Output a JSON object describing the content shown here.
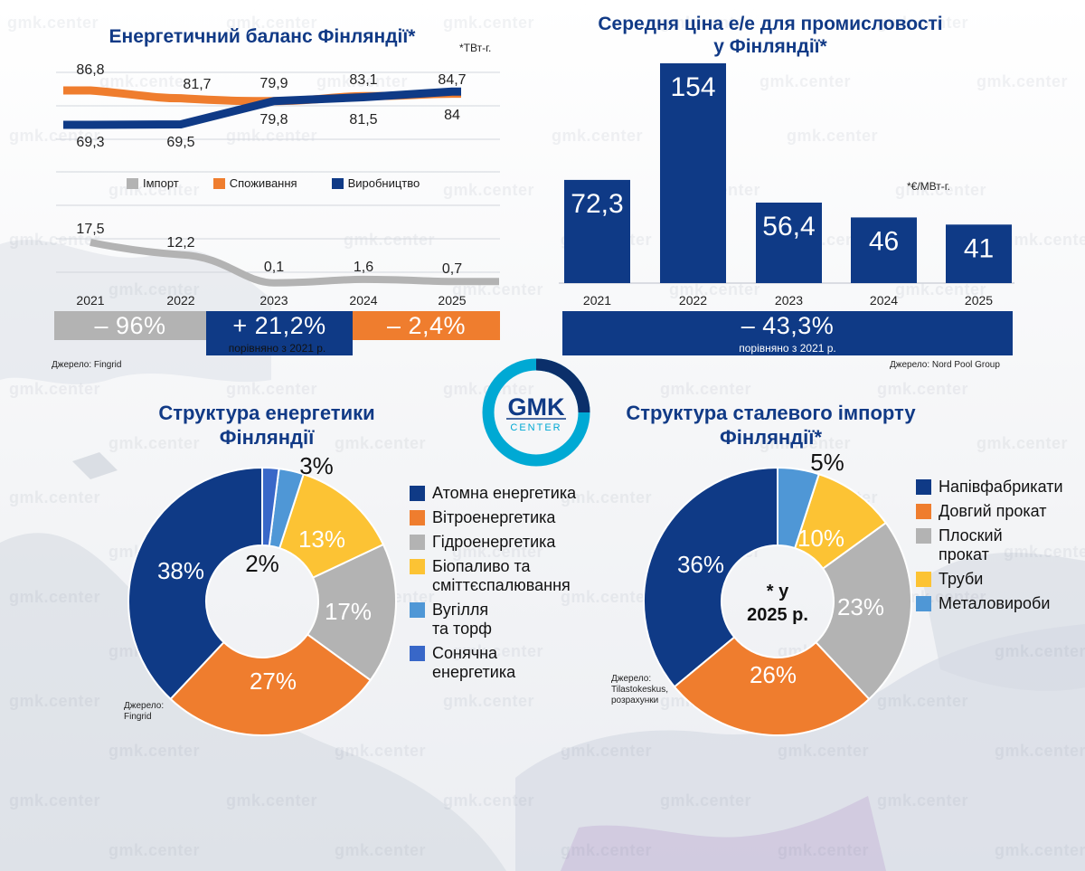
{
  "watermark": "gmk.center",
  "colors": {
    "navy": "#0f3a86",
    "orange": "#ef7d2e",
    "gray": "#b3b3b3",
    "yellow": "#fcc334",
    "lightblue": "#4f97d6",
    "blue": "#3867c8",
    "title": "#113a86",
    "logo_ring": "#00a9d4"
  },
  "logo": {
    "top": "GMK",
    "bottom": "CENTER"
  },
  "chart_data": [
    {
      "id": "balance",
      "type": "line",
      "title": "Енергетичний баланс Фінляндії*",
      "unit_note": "*ТВт-г.",
      "x": [
        "2021",
        "2022",
        "2023",
        "2024",
        "2025"
      ],
      "series": [
        {
          "name": "Споживання",
          "color": "#ef7d2e",
          "values": [
            86.8,
            81.7,
            79.9,
            83.1,
            84.7
          ],
          "labels": [
            "86,8",
            "81,7",
            "79,9",
            "83,1",
            "84,7"
          ]
        },
        {
          "name": "Виробництво",
          "color": "#0f3a86",
          "values": [
            69.3,
            69.5,
            79.8,
            81.5,
            84
          ],
          "labels": [
            "69,3",
            "69,5",
            "79,8",
            "81,5",
            "84"
          ]
        },
        {
          "name": "Імпорт",
          "color": "#b3b3b3",
          "values": [
            17.5,
            12.2,
            0.1,
            1.6,
            0.7
          ],
          "labels": [
            "17,5",
            "12,2",
            "0,1",
            "1,6",
            "0,7"
          ]
        }
      ],
      "legend_order": [
        "Імпорт",
        "Споживання",
        "Виробництво"
      ],
      "changes": [
        {
          "label": "– 96%",
          "color": "#b3b3b3"
        },
        {
          "label": "+ 21,2%",
          "color": "#0f3a86"
        },
        {
          "label": "– 2,4%",
          "color": "#ef7d2e"
        }
      ],
      "compare_text": "порівняно з 2021 р.",
      "source": "Джерело: Fingrid"
    },
    {
      "id": "price",
      "type": "bar",
      "title": "Середня ціна е/е для промисловості у Фінляндії*",
      "title_line1": "Середня ціна е/е для промисловості",
      "title_line2": "у Фінляндії*",
      "unit_note": "*€/МВт-г.",
      "categories": [
        "2021",
        "2022",
        "2023",
        "2024",
        "2025"
      ],
      "values": [
        72.3,
        154,
        56.4,
        46,
        41
      ],
      "labels": [
        "72,3",
        "154",
        "56,4",
        "46",
        "41"
      ],
      "color": "#0f3a86",
      "change": "– 43,3%",
      "compare_text": "порівняно з 2021 р.",
      "source": "Джерело: Nord Pool Group"
    },
    {
      "id": "energy_structure",
      "type": "pie",
      "title_line1": "Структура енергетики",
      "title_line2": "Фінляндії",
      "slices": [
        {
          "name": "Атомна енергетика",
          "value": 38,
          "label": "38%",
          "color": "#0f3a86"
        },
        {
          "name": "Вітроенергетика",
          "value": 27,
          "label": "27%",
          "color": "#ef7d2e"
        },
        {
          "name": "Гідроенергетика",
          "value": 17,
          "label": "17%",
          "color": "#b3b3b3"
        },
        {
          "name": "Біопаливо та сміттєспалювання",
          "value": 13,
          "label": "13%",
          "color": "#fcc334"
        },
        {
          "name": "Вугілля та торф",
          "value": 3,
          "label": "3%",
          "color": "#4f97d6"
        },
        {
          "name": "Сонячна енергетика",
          "value": 2,
          "label": "2%",
          "color": "#3867c8"
        }
      ],
      "legend": [
        {
          "line1": "Атомна енергетика",
          "line2": ""
        },
        {
          "line1": "Вітроенергетика",
          "line2": ""
        },
        {
          "line1": "Гідроенергетика",
          "line2": ""
        },
        {
          "line1": "Біопаливо та",
          "line2": "сміттєспалювання"
        },
        {
          "line1": "Вугілля",
          "line2": "та торф"
        },
        {
          "line1": "Сонячна",
          "line2": "енергетика"
        }
      ],
      "source_line1": "Джерело:",
      "source_line2": "Fingrid"
    },
    {
      "id": "steel_import",
      "type": "pie",
      "title_line1": "Структура сталевого імпорту",
      "title_line2": "Фінляндії*",
      "center_line1": "* у",
      "center_line2": "2025 р.",
      "slices": [
        {
          "name": "Напівфабрикати",
          "value": 36,
          "label": "36%",
          "color": "#0f3a86"
        },
        {
          "name": "Довгий прокат",
          "value": 26,
          "label": "26%",
          "color": "#ef7d2e"
        },
        {
          "name": "Плоский прокат",
          "value": 23,
          "label": "23%",
          "color": "#b3b3b3"
        },
        {
          "name": "Труби",
          "value": 10,
          "label": "10%",
          "color": "#fcc334"
        },
        {
          "name": "Металовироби",
          "value": 5,
          "label": "5%",
          "color": "#4f97d6"
        }
      ],
      "legend": [
        {
          "line1": "Напівфабрикати",
          "line2": ""
        },
        {
          "line1": "Довгий прокат",
          "line2": ""
        },
        {
          "line1": "Плоский",
          "line2": "прокат"
        },
        {
          "line1": "Труби",
          "line2": ""
        },
        {
          "line1": "Металовироби",
          "line2": ""
        }
      ],
      "source_line1": "Джерело:",
      "source_line2": "Tilastokeskus,",
      "source_line3": "розрахунки"
    }
  ]
}
